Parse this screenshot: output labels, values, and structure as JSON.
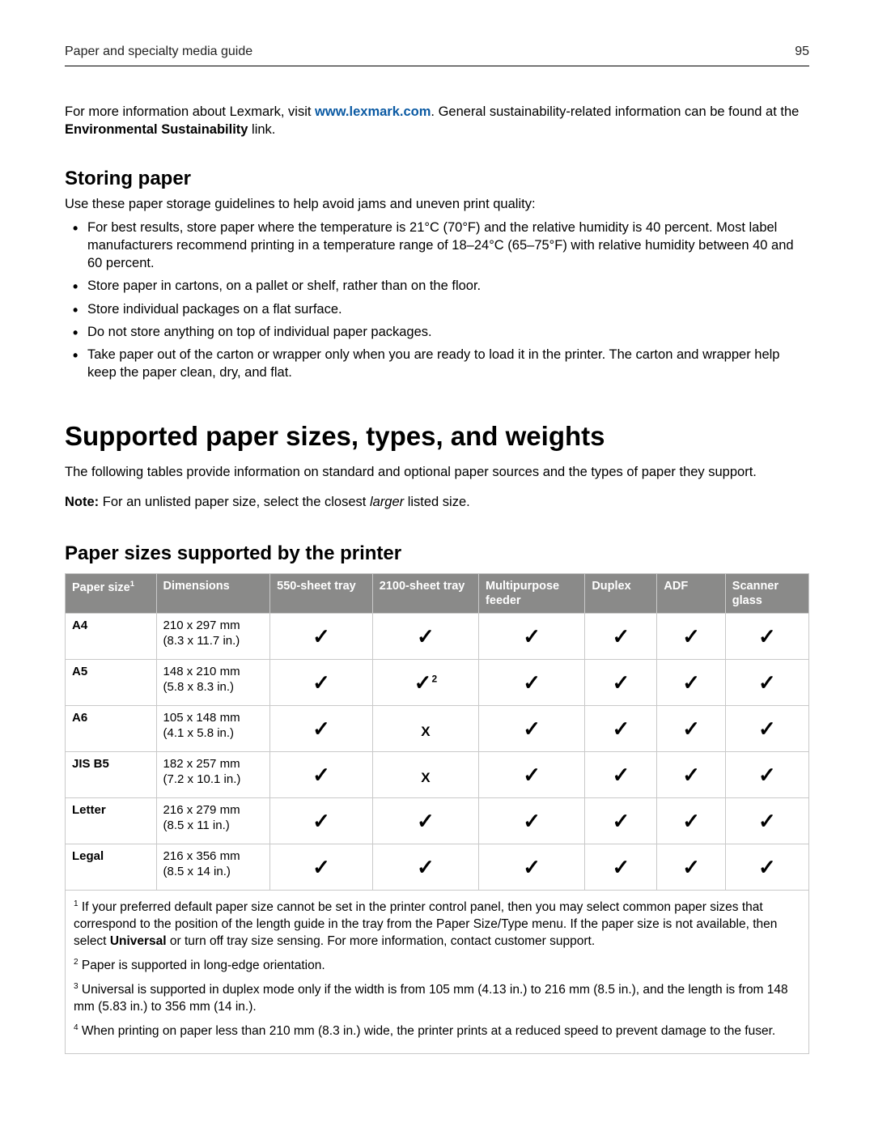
{
  "header": {
    "title": "Paper and specialty media guide",
    "page_number": "95"
  },
  "intro": {
    "pre": "For more information about Lexmark, visit ",
    "link_text": "www.lexmark.com",
    "post": ". General sustainability-related information can be found at the ",
    "bold": "Environmental Sustainability",
    "tail": " link."
  },
  "storing": {
    "heading": "Storing paper",
    "lead": "Use these paper storage guidelines to help avoid jams and uneven print quality:",
    "bullets": [
      "For best results, store paper where the temperature is 21°C (70°F) and the relative humidity is 40 percent. Most label manufacturers recommend printing in a temperature range of 18–24°C (65–75°F) with relative humidity between 40 and 60 percent.",
      "Store paper in cartons, on a pallet or shelf, rather than on the floor.",
      "Store individual packages on a flat surface.",
      "Do not store anything on top of individual paper packages.",
      "Take paper out of the carton or wrapper only when you are ready to load it in the printer. The carton and wrapper help keep the paper clean, dry, and flat."
    ]
  },
  "supported": {
    "heading": "Supported paper sizes, types, and weights",
    "para1": "The following tables provide information on standard and optional paper sources and the types of paper they support.",
    "note_label": "Note:",
    "note_pre": " For an unlisted paper size, select the closest ",
    "note_italic": "larger",
    "note_post": " listed size."
  },
  "table": {
    "heading": "Paper sizes supported by the printer",
    "columns": {
      "c0": "Paper size",
      "c0_sup": "1",
      "c1": "Dimensions",
      "c2": "550-sheet tray",
      "c3": "2100-sheet tray",
      "c4": "Multipurpose feeder",
      "c5": "Duplex",
      "c6": "ADF",
      "c7": "Scanner glass"
    },
    "col_widths": [
      "12%",
      "15%",
      "13.5%",
      "14%",
      "14%",
      "9.5%",
      "9%",
      "11%"
    ],
    "header_bg": "#8a8a89",
    "header_fg": "#ffffff",
    "border_color": "#c9c9c9",
    "rows": [
      {
        "name": "A4",
        "dim1": "210 x 297 mm",
        "dim2": "(8.3 x 11.7 in.)",
        "cells": [
          "check",
          "check",
          "check",
          "check",
          "check",
          "check"
        ]
      },
      {
        "name": "A5",
        "dim1": "148 x 210 mm",
        "dim2": "(5.8 x 8.3 in.)",
        "cells": [
          "check",
          "check2",
          "check",
          "check",
          "check",
          "check"
        ]
      },
      {
        "name": "A6",
        "dim1": "105 x 148 mm",
        "dim2": "(4.1 x 5.8 in.)",
        "cells": [
          "check",
          "x",
          "check",
          "check",
          "check",
          "check"
        ]
      },
      {
        "name": "JIS B5",
        "dim1": "182 x 257 mm",
        "dim2": "(7.2 x 10.1 in.)",
        "cells": [
          "check",
          "x",
          "check",
          "check",
          "check",
          "check"
        ]
      },
      {
        "name": "Letter",
        "dim1": "216 x 279 mm",
        "dim2": "(8.5 x 11 in.)",
        "cells": [
          "check",
          "check",
          "check",
          "check",
          "check",
          "check"
        ]
      },
      {
        "name": "Legal",
        "dim1": "216 x 356 mm",
        "dim2": "(8.5 x 14 in.)",
        "cells": [
          "check",
          "check",
          "check",
          "check",
          "check",
          "check"
        ]
      }
    ]
  },
  "footnotes": {
    "n1_pre": " If your preferred default paper size cannot be set in the printer control panel, then you may select common paper sizes that correspond to the position of the length guide in the tray from the Paper Size/Type menu. If the paper size is not available, then select ",
    "n1_bold": "Universal",
    "n1_post": " or turn off tray size sensing. For more information, contact customer support.",
    "n2": " Paper is supported in long-edge orientation.",
    "n3": " Universal is supported in duplex mode only if the width is from 105 mm (4.13 in.) to 216 mm (8.5 in.), and the length is from 148 mm (5.83 in.) to 356 mm (14 in.).",
    "n4": " When printing on paper less than 210 mm (8.3 in.) wide, the printer prints at a reduced speed to prevent damage to the fuser."
  }
}
